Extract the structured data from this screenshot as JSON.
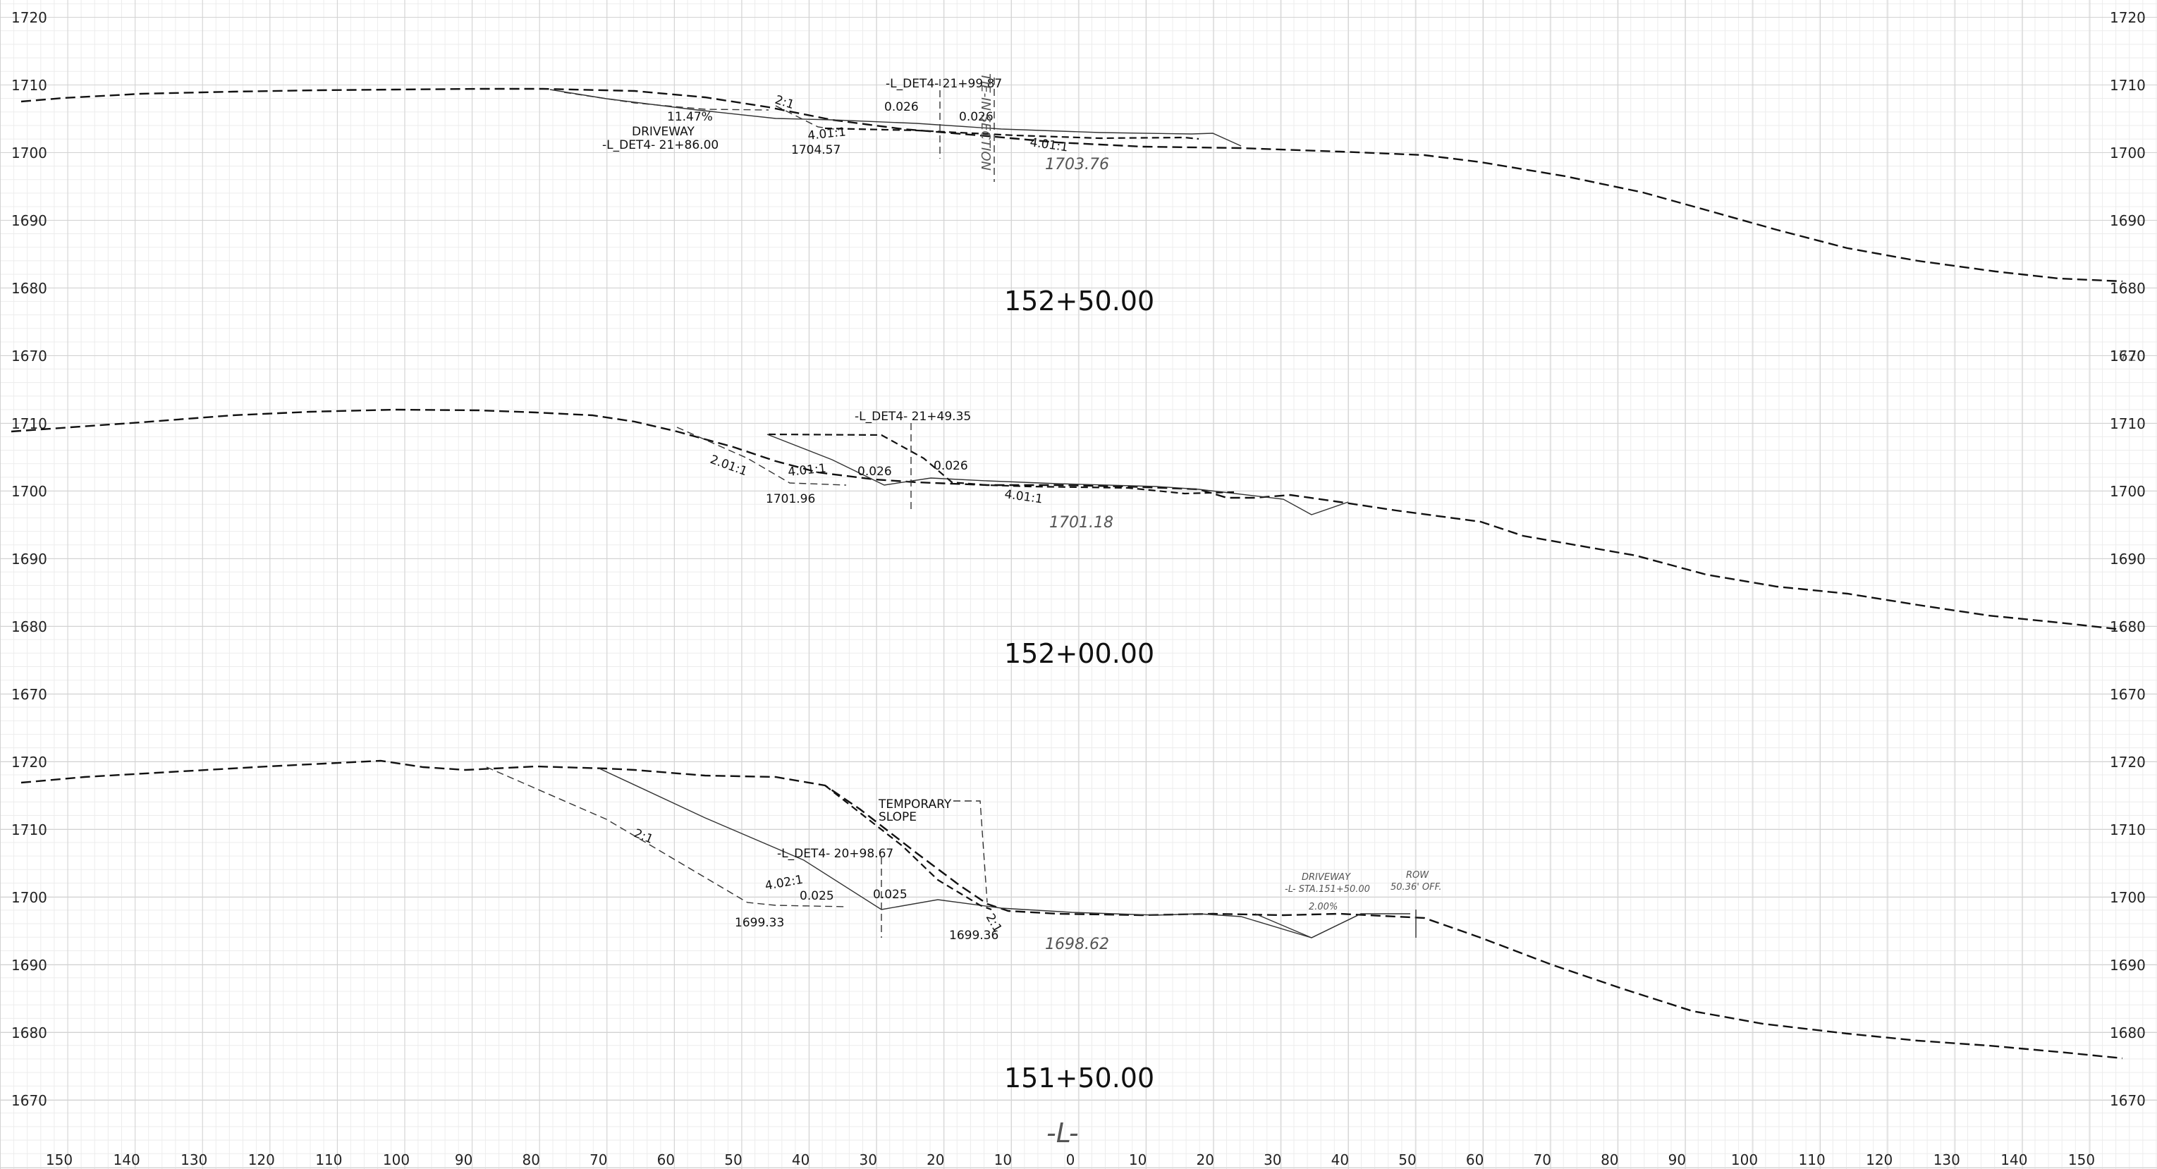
{
  "sheet": {
    "station_center_symbol": "-L-",
    "offset_ticks": [
      "150",
      "140",
      "130",
      "120",
      "110",
      "100",
      "90",
      "80",
      "70",
      "60",
      "50",
      "40",
      "30",
      "20",
      "10",
      "0",
      "10",
      "20",
      "30",
      "40",
      "50",
      "60",
      "70",
      "80",
      "90",
      "100",
      "110",
      "120",
      "130",
      "140",
      "150"
    ],
    "sections": [
      {
        "station": "152+50.00",
        "elev_labels_left": [
          "1720",
          "1710",
          "1700",
          "1690",
          "1680",
          "1670"
        ],
        "elev_labels_right": [
          "1720",
          "1710",
          "1700",
          "1690",
          "1680",
          "1670"
        ],
        "annotations": {
          "tie": "-L_DET4- 21+99.87",
          "driveway": "DRIVEWAY",
          "driveway_sta": "-L_DET4- 21+86.00",
          "grade_pct": "11.47%",
          "slope_2_1": "2:1",
          "cross_1": "0.026",
          "cross_2": "0.026",
          "slope_left": "4.01:1",
          "slope_right": "4.01:1",
          "elev_low": "1704.57",
          "hand_elev": "1703.76",
          "hand_vertical": "TIE-IN SECTION"
        }
      },
      {
        "station": "152+00.00",
        "elev_labels_left": [
          "1710",
          "1700",
          "1690",
          "1680",
          "1670"
        ],
        "elev_labels_right": [
          "1720",
          "1710",
          "1700",
          "1690",
          "1680",
          "1670"
        ],
        "annotations": {
          "tie": "-L_DET4- 21+49.35",
          "slope_201": "2.01:1",
          "slope_left": "4.01:1",
          "slope_right": "4.01:1",
          "cross_1": "0.026",
          "cross_2": "0.026",
          "elev_low": "1701.96",
          "hand_elev": "1701.18"
        }
      },
      {
        "station": "151+50.00",
        "elev_labels_left": [
          "1720",
          "1710",
          "1700",
          "1690",
          "1680",
          "1670"
        ],
        "elev_labels_right": [
          "1720",
          "1710",
          "1700",
          "1690",
          "1680",
          "1670"
        ],
        "annotations": {
          "temp_slope": "TEMPORARY SLOPE",
          "temp_slope_1": "TEMPORARY",
          "temp_slope_2": "SLOPE",
          "tie": "-L_DET4- 20+98.67",
          "slope_2_1_long": "2:1",
          "slope_402": "4.02:1",
          "cross_1": "0.025",
          "cross_2": "0.025",
          "slope_2_1_small": "2:1",
          "elev_low_left": "1699.33",
          "elev_low_right": "1699.36",
          "hand_elev": "1698.62",
          "driveway_note": "DRIVEWAY",
          "driveway_sta": "-L- STA.151+50.00",
          "driveway_pct": "2.00%",
          "row": "ROW",
          "row_off": "50.36' OFF."
        }
      }
    ]
  }
}
